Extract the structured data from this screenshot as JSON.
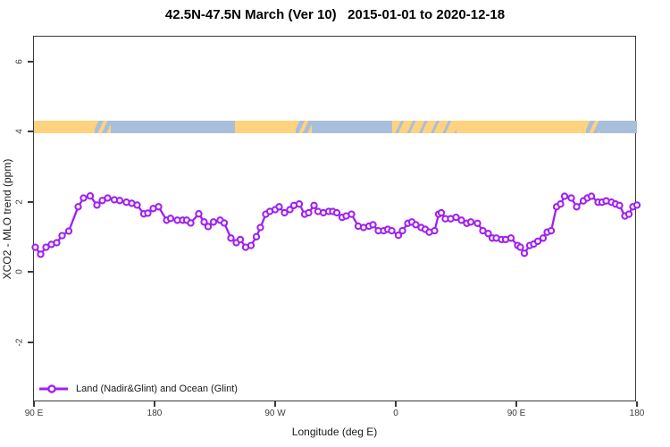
{
  "title": "42.5N-47.5N March (Ver 10)   2015-01-01 to 2020-12-18",
  "colors": {
    "series": "#A020F0",
    "marker_fill": "#FFFFFF",
    "land_band": "#FFD27F",
    "ocean_band": "#A8BFDB",
    "axis": "#3A3A3A",
    "background": "#FFFFFF"
  },
  "chart_data": {
    "type": "line",
    "title": "42.5N-47.5N March (Ver 10)   2015-01-01 to 2020-12-18",
    "xlabel": "Longitude (deg E)",
    "ylabel": "XCO2 - MLO trend (ppm)",
    "xlim": [
      90,
      540
    ],
    "ylim": [
      -3.7,
      6.7
    ],
    "grid": false,
    "x_ticks": [
      {
        "deg": 90,
        "label": "90 E"
      },
      {
        "deg": 180,
        "label": "180"
      },
      {
        "deg": 270,
        "label": "90 W"
      },
      {
        "deg": 360,
        "label": "0"
      },
      {
        "deg": 450,
        "label": "90 E"
      },
      {
        "deg": 540,
        "label": "180"
      }
    ],
    "y_ticks": [
      {
        "value": -2,
        "label": "-2"
      },
      {
        "value": 0,
        "label": "0"
      },
      {
        "value": 2,
        "label": "2"
      },
      {
        "value": 4,
        "label": "4"
      },
      {
        "value": 6,
        "label": "6"
      }
    ],
    "legend": {
      "label": "Land (Nadir&Glint) and Ocean (Glint)",
      "position": "bottom-left",
      "marker": "open-circle-line"
    },
    "surface_band": {
      "description": "land/ocean mask strip along latitude band",
      "y_range": [
        3.95,
        4.31
      ],
      "segments": [
        {
          "from": 90,
          "to": 135,
          "type": "land"
        },
        {
          "from": 135,
          "to": 147,
          "type": "mixed"
        },
        {
          "from": 147,
          "to": 240,
          "type": "ocean"
        },
        {
          "from": 240,
          "to": 285,
          "type": "land"
        },
        {
          "from": 285,
          "to": 297,
          "type": "mixed"
        },
        {
          "from": 297,
          "to": 357,
          "type": "ocean"
        },
        {
          "from": 357,
          "to": 405,
          "type": "mostly-land"
        },
        {
          "from": 405,
          "to": 502,
          "type": "land"
        },
        {
          "from": 502,
          "to": 512,
          "type": "mixed"
        },
        {
          "from": 512,
          "to": 540,
          "type": "ocean"
        }
      ]
    },
    "series": [
      {
        "name": "Land (Nadir&Glint) and Ocean (Glint)",
        "color": "#A020F0",
        "marker": "open-circle",
        "points": [
          [
            91,
            0.71
          ],
          [
            95,
            0.51
          ],
          [
            99,
            0.71
          ],
          [
            103,
            0.79
          ],
          [
            107,
            0.84
          ],
          [
            111,
            1.04
          ],
          [
            116,
            1.17
          ],
          [
            123,
            1.86
          ],
          [
            127,
            2.11
          ],
          [
            132,
            2.17
          ],
          [
            137,
            1.91
          ],
          [
            141,
            2.04
          ],
          [
            145,
            2.11
          ],
          [
            150,
            2.06
          ],
          [
            154,
            2.04
          ],
          [
            159,
            1.99
          ],
          [
            163,
            1.96
          ],
          [
            167,
            1.91
          ],
          [
            172,
            1.66
          ],
          [
            175,
            1.68
          ],
          [
            179,
            1.81
          ],
          [
            183,
            1.86
          ],
          [
            189,
            1.48
          ],
          [
            192,
            1.53
          ],
          [
            197,
            1.48
          ],
          [
            201,
            1.48
          ],
          [
            204,
            1.48
          ],
          [
            207,
            1.4
          ],
          [
            213,
            1.66
          ],
          [
            217,
            1.43
          ],
          [
            220,
            1.3
          ],
          [
            224,
            1.43
          ],
          [
            229,
            1.48
          ],
          [
            232,
            1.4
          ],
          [
            237,
            0.97
          ],
          [
            241,
            0.84
          ],
          [
            244,
            0.93
          ],
          [
            248,
            0.71
          ],
          [
            252,
            0.76
          ],
          [
            256,
            1.01
          ],
          [
            259,
            1.27
          ],
          [
            263,
            1.65
          ],
          [
            266,
            1.73
          ],
          [
            270,
            1.78
          ],
          [
            273,
            1.86
          ],
          [
            277,
            1.69
          ],
          [
            281,
            1.78
          ],
          [
            284,
            1.9
          ],
          [
            288,
            1.94
          ],
          [
            292,
            1.65
          ],
          [
            295,
            1.69
          ],
          [
            299,
            1.9
          ],
          [
            302,
            1.73
          ],
          [
            306,
            1.69
          ],
          [
            310,
            1.73
          ],
          [
            313,
            1.73
          ],
          [
            316,
            1.69
          ],
          [
            320,
            1.56
          ],
          [
            323,
            1.6
          ],
          [
            327,
            1.65
          ],
          [
            332,
            1.31
          ],
          [
            336,
            1.27
          ],
          [
            340,
            1.31
          ],
          [
            343,
            1.35
          ],
          [
            347,
            1.18
          ],
          [
            351,
            1.18
          ],
          [
            354,
            1.22
          ],
          [
            357,
            1.18
          ],
          [
            362,
            1.05
          ],
          [
            365,
            1.18
          ],
          [
            369,
            1.39
          ],
          [
            372,
            1.43
          ],
          [
            375,
            1.35
          ],
          [
            379,
            1.27
          ],
          [
            382,
            1.22
          ],
          [
            385,
            1.14
          ],
          [
            389,
            1.18
          ],
          [
            392,
            1.65
          ],
          [
            394,
            1.69
          ],
          [
            397,
            1.52
          ],
          [
            401,
            1.52
          ],
          [
            405,
            1.56
          ],
          [
            409,
            1.48
          ],
          [
            413,
            1.39
          ],
          [
            416,
            1.43
          ],
          [
            421,
            1.39
          ],
          [
            425,
            1.18
          ],
          [
            429,
            1.1
          ],
          [
            432,
            0.97
          ],
          [
            435,
            0.97
          ],
          [
            439,
            0.93
          ],
          [
            442,
            0.93
          ],
          [
            446,
            0.97
          ],
          [
            451,
            0.76
          ],
          [
            453,
            0.71
          ],
          [
            456,
            0.54
          ],
          [
            460,
            0.76
          ],
          [
            463,
            0.8
          ],
          [
            466,
            0.88
          ],
          [
            470,
            0.97
          ],
          [
            473,
            1.14
          ],
          [
            476,
            1.18
          ],
          [
            480,
            1.86
          ],
          [
            483,
            1.94
          ],
          [
            486,
            2.16
          ],
          [
            491,
            2.11
          ],
          [
            495,
            1.86
          ],
          [
            500,
            2.03
          ],
          [
            503,
            2.11
          ],
          [
            506,
            2.16
          ],
          [
            511,
            1.99
          ],
          [
            514,
            1.99
          ],
          [
            517,
            2.03
          ],
          [
            521,
            1.99
          ],
          [
            524,
            1.94
          ],
          [
            527,
            1.9
          ],
          [
            531,
            1.6
          ],
          [
            534,
            1.65
          ],
          [
            537,
            1.86
          ],
          [
            540,
            1.91
          ]
        ]
      }
    ]
  }
}
